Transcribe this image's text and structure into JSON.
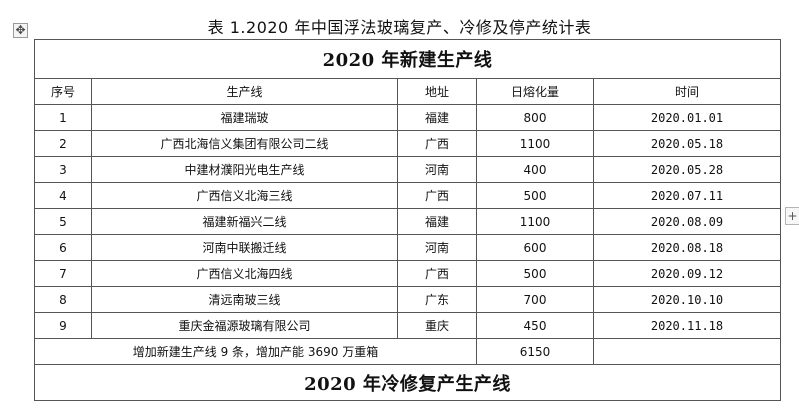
{
  "title": "表 1.2020 年中国浮法玻璃复产、冷修及停产统计表",
  "icons": {
    "move_handle": "move-arrows-icon",
    "add_button": "plus-icon"
  },
  "section1_title": "2020 年新建生产线",
  "columns": [
    "序号",
    "生产线",
    "地址",
    "日熔化量",
    "时间"
  ],
  "rows": [
    {
      "no": "1",
      "line": "福建瑞玻",
      "location": "福建",
      "capacity": "800",
      "date": "2020.01.01"
    },
    {
      "no": "2",
      "line": "广西北海信义集团有限公司二线",
      "location": "广西",
      "capacity": "1100",
      "date": "2020.05.18"
    },
    {
      "no": "3",
      "line": "中建材濮阳光电生产线",
      "location": "河南",
      "capacity": "400",
      "date": "2020.05.28"
    },
    {
      "no": "4",
      "line": "广西信义北海三线",
      "location": "广西",
      "capacity": "500",
      "date": "2020.07.11"
    },
    {
      "no": "5",
      "line": "福建新福兴二线",
      "location": "福建",
      "capacity": "1100",
      "date": "2020.08.09"
    },
    {
      "no": "6",
      "line": "河南中联搬迁线",
      "location": "河南",
      "capacity": "600",
      "date": "2020.08.18"
    },
    {
      "no": "7",
      "line": "广西信义北海四线",
      "location": "广西",
      "capacity": "500",
      "date": "2020.09.12"
    },
    {
      "no": "8",
      "line": "清远南玻三线",
      "location": "广东",
      "capacity": "700",
      "date": "2020.10.10"
    },
    {
      "no": "9",
      "line": "重庆金福源玻璃有限公司",
      "location": "重庆",
      "capacity": "450",
      "date": "2020.11.18"
    }
  ],
  "summary": {
    "text": "增加新建生产线 9 条，增加产能 3690 万重箱",
    "capacity": "6150"
  },
  "section2_title": "2020 年冷修复产生产线"
}
